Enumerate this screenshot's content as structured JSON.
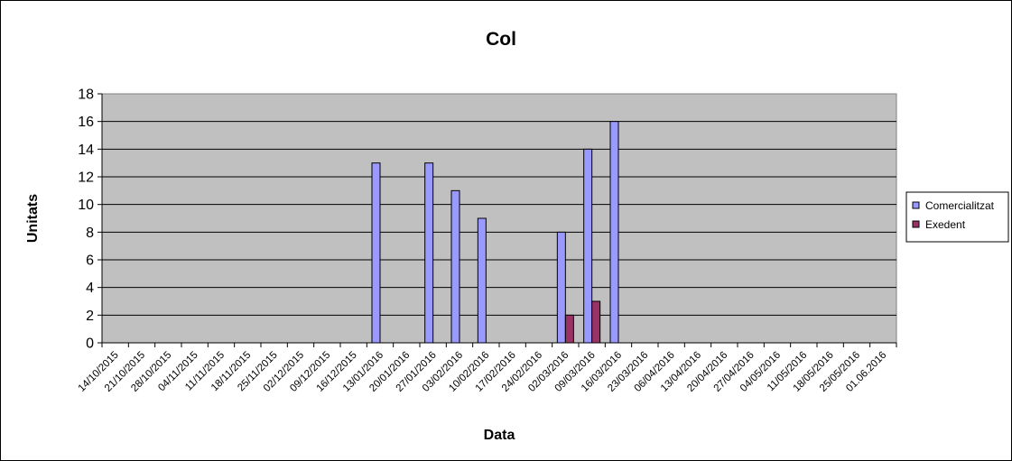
{
  "chart_data": {
    "type": "bar",
    "title": "Col",
    "xlabel": "Data",
    "ylabel": "Unitats",
    "ylim": [
      0,
      18
    ],
    "yticks": [
      0,
      2,
      4,
      6,
      8,
      10,
      12,
      14,
      16,
      18
    ],
    "grid": true,
    "legend_position": "right",
    "categories": [
      "14/10/2015",
      "21/10/2015",
      "28/10/2015",
      "04/11/2015",
      "11/11/2015",
      "18/11/2015",
      "25/11/2015",
      "02/12/2015",
      "09/12/2015",
      "16/12/2015",
      "13/01/2016",
      "20/01/2016",
      "27/01/2016",
      "03/02/2016",
      "10/02/2016",
      "17/02/2016",
      "24/02/2016",
      "02/03/2016",
      "09/03/2016",
      "16/03/2016",
      "23/03/2016",
      "06/04/2016",
      "13/04/2016",
      "20/04/2016",
      "27/04/2016",
      "04/05/2016",
      "11/05/2016",
      "18/05/2016",
      "25/05/2016",
      "01.06.2016"
    ],
    "series": [
      {
        "name": "Comercialitzat",
        "color": "#9999ff",
        "values": [
          null,
          null,
          null,
          null,
          null,
          null,
          null,
          null,
          null,
          null,
          13,
          null,
          13,
          11,
          9,
          null,
          null,
          8,
          14,
          16,
          null,
          null,
          null,
          null,
          null,
          null,
          null,
          null,
          null,
          null
        ]
      },
      {
        "name": "Exedent",
        "color": "#993366",
        "values": [
          null,
          null,
          null,
          null,
          null,
          null,
          null,
          null,
          null,
          null,
          null,
          null,
          null,
          null,
          null,
          null,
          null,
          2,
          3,
          null,
          null,
          null,
          null,
          null,
          null,
          null,
          null,
          null,
          null,
          null
        ]
      }
    ],
    "plot_background": "#c0c0c0"
  }
}
